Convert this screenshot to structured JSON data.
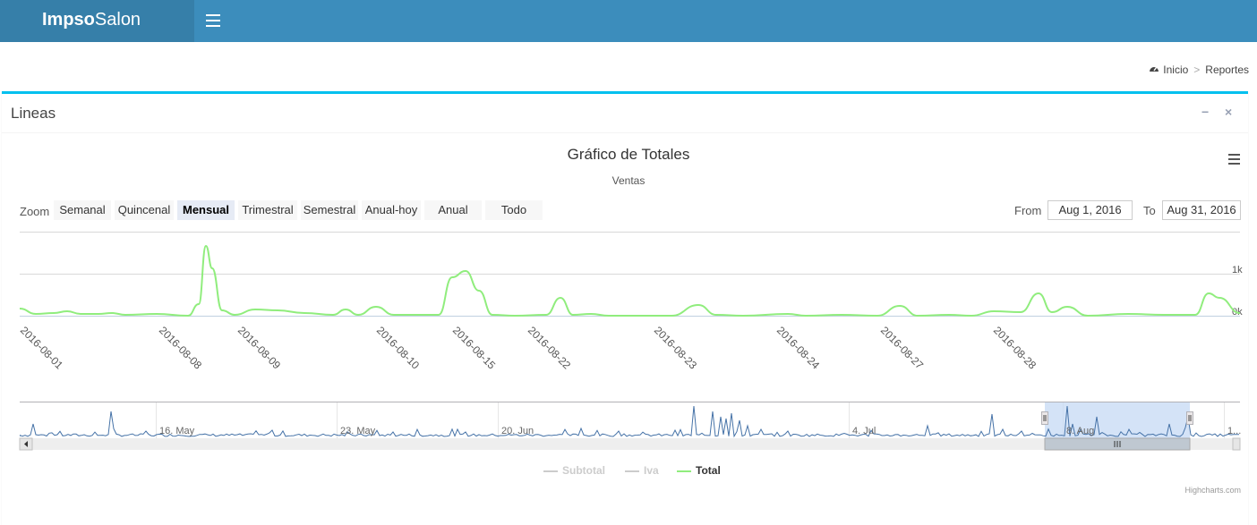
{
  "app": {
    "brand_bold": "Impso",
    "brand_light": "Salon"
  },
  "breadcrumb": {
    "home": "Inicio",
    "sep": ">",
    "current": "Reportes"
  },
  "box": {
    "title": "Lineas",
    "minimize": "−",
    "close": "×"
  },
  "chart_data": {
    "type": "line",
    "title": "Gráfico de Totales",
    "subtitle": "Ventas",
    "zoom_label": "Zoom",
    "zoom_buttons": [
      "Semanal",
      "Quincenal",
      "Mensual",
      "Trimestral",
      "Semestral",
      "Anual-hoy",
      "Anual",
      "Todo"
    ],
    "zoom_selected": "Mensual",
    "range": {
      "from_label": "From",
      "from": "Aug 1, 2016",
      "to_label": "To",
      "to": "Aug 31, 2016"
    },
    "x": [
      "2016-08-01",
      "2016-08-08",
      "2016-08-09",
      "2016-08-10",
      "2016-08-15",
      "2016-08-22",
      "2016-08-23",
      "2016-08-24",
      "2016-08-27",
      "2016-08-28"
    ],
    "y_ticks": [
      "0k",
      "1k"
    ],
    "series": [
      {
        "name": "Subtotal",
        "visible": false,
        "color": "#cccccc"
      },
      {
        "name": "Iva",
        "visible": false,
        "color": "#cccccc"
      },
      {
        "name": "Total",
        "visible": true,
        "color": "#90ed7d"
      }
    ],
    "navigator": {
      "labels": [
        "16. May",
        "23. May",
        "20. Jun",
        "4. Jul",
        "8. Aug",
        "1..."
      ],
      "color": "#4572a7",
      "selection_color": "#c6d9f4"
    },
    "grid": true,
    "credits": "Highcharts.com"
  }
}
